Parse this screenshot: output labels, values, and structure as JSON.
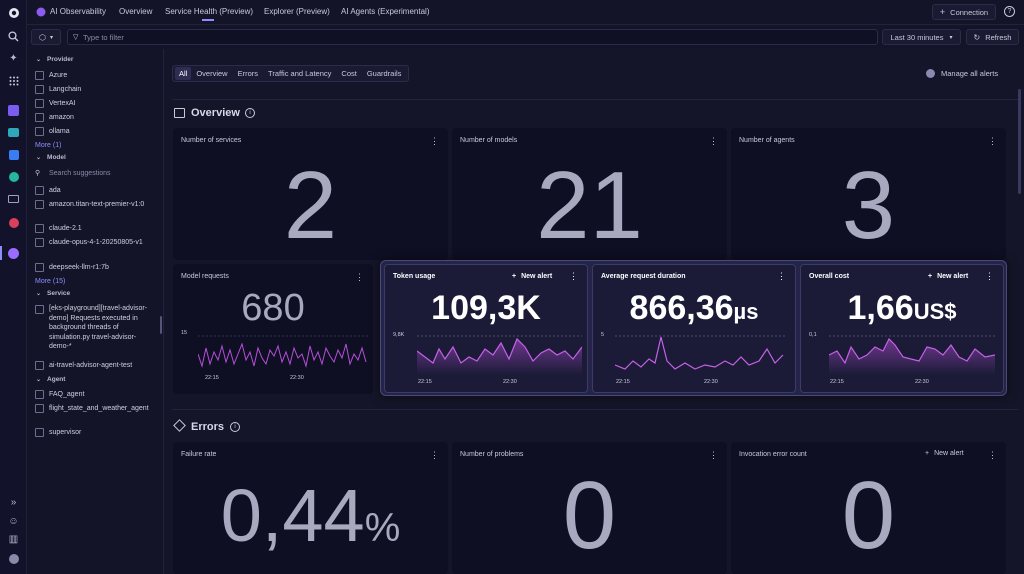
{
  "app": {
    "name": "AI Observability"
  },
  "nav": {
    "tabs": [
      "Overview",
      "Service Health (Preview)",
      "Explorer (Preview)",
      "AI Agents (Experimental)"
    ],
    "active_tab": "Service Health (Preview)"
  },
  "header": {
    "connection_label": "Connection"
  },
  "filter": {
    "placeholder": "Type to filter",
    "time_range": "Last 30 minutes",
    "refresh_label": "Refresh"
  },
  "sidebar": {
    "provider": {
      "label": "Provider",
      "items": [
        "Azure",
        "Langchain",
        "VertexAI",
        "amazon",
        "ollama"
      ],
      "more": "More (1)"
    },
    "model": {
      "label": "Model",
      "search_placeholder": "Search suggestions",
      "items": [
        "ada",
        "amazon.titan-text-premier-v1:0",
        "claude-2.1",
        "claude-opus-4-1-20250805-v1",
        "deepseek-llm-r1:7b"
      ],
      "more": "More (15)"
    },
    "service": {
      "label": "Service",
      "items": [
        "[eks-playground][travel-advisor-demo] Requests executed in background threads of simulation.py travel-advisor-demo-*",
        "ai-travel-advisor-agent-test"
      ]
    },
    "agent": {
      "label": "Agent",
      "items": [
        "FAQ_agent",
        "flight_state_and_weather_agent",
        "supervisor"
      ]
    }
  },
  "filters": {
    "tabs": [
      "All",
      "Overview",
      "Errors",
      "Traffic and Latency",
      "Cost",
      "Guardrails"
    ],
    "active": "All",
    "manage_alerts": "Manage all alerts"
  },
  "overview": {
    "title": "Overview",
    "cards": [
      {
        "title": "Number of services",
        "value": "2"
      },
      {
        "title": "Number of models",
        "value": "21"
      },
      {
        "title": "Number of agents",
        "value": "3"
      }
    ],
    "model_requests": {
      "title": "Model requests",
      "value": "680",
      "y_tick": "15",
      "x_ticks": [
        "22:15",
        "22:30"
      ]
    },
    "highlight": [
      {
        "title": "Token usage",
        "new_alert": "New alert",
        "value": "109,3K",
        "unit": "",
        "y_tick": "9,8K",
        "x_ticks": [
          "22:15",
          "22:30"
        ]
      },
      {
        "title": "Average request duration",
        "new_alert": "",
        "value": "866,36",
        "unit": "µs",
        "y_tick": "5",
        "x_ticks": [
          "22:15",
          "22:30"
        ]
      },
      {
        "title": "Overall cost",
        "new_alert": "New alert",
        "value": "1,66",
        "unit": "US$",
        "y_tick": "0,1",
        "x_ticks": [
          "22:15",
          "22:30"
        ]
      }
    ]
  },
  "errors": {
    "title": "Errors",
    "cards": [
      {
        "title": "Failure rate",
        "value": "0,44",
        "unit": "%",
        "new_alert": ""
      },
      {
        "title": "Number of problems",
        "value": "0",
        "unit": "",
        "new_alert": ""
      },
      {
        "title": "Invocation error count",
        "value": "0",
        "unit": "",
        "new_alert": "New alert"
      }
    ]
  },
  "colors": {
    "accent": "#b54fd8",
    "bg": "#151529",
    "card": "#0f0f24"
  }
}
